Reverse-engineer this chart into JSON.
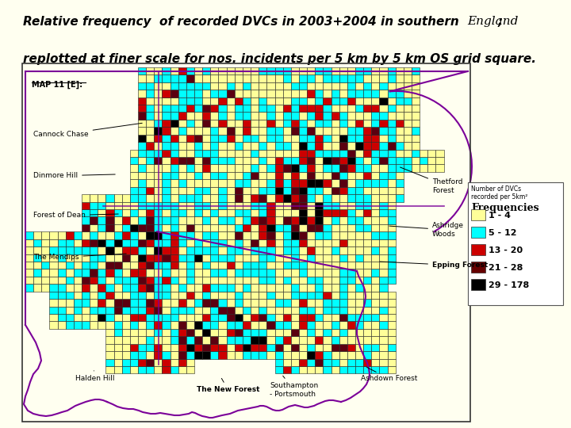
{
  "bg_color": "#FFFFF0",
  "map_bg": "#FFFFFF",
  "border_color": "#800080",
  "freq_colors": [
    "#FFFF99",
    "#00FFFF",
    "#CC0000",
    "#660000",
    "#000000"
  ],
  "legend_labels": [
    "1 - 4",
    "5 - 12",
    "13 - 20",
    "21 - 28",
    "29 - 178"
  ],
  "legend_title1": "Number of DVCs",
  "legend_title2": "recorded per 5km²",
  "legend_header": "Frequencies",
  "map_label": "MAP 11 [E]:",
  "title_part1": "Relative frequency  of recorded DVCs in 2003+2004 in southern ",
  "title_italic": "England",
  "title_semi": ";",
  "title_line2": "replotted at finer scale for nos. incidents per 5 km by 5 km OS grid square.",
  "figsize": [
    7.2,
    5.4
  ],
  "dpi": 100
}
